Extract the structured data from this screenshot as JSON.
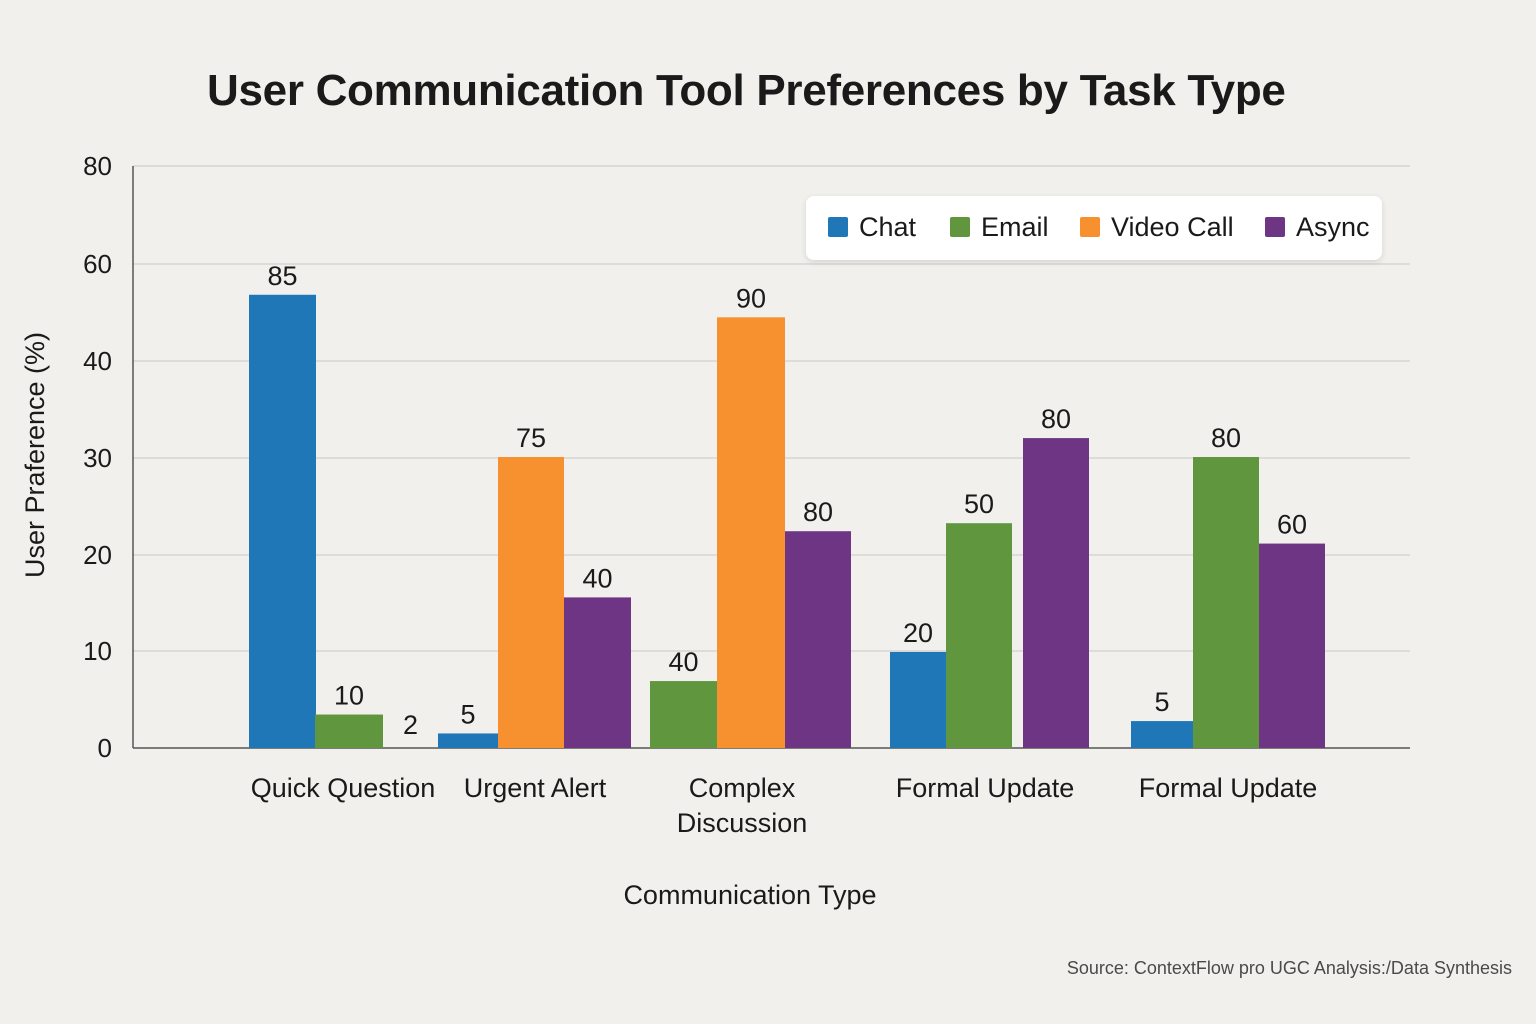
{
  "chart_data": {
    "type": "bar",
    "title": "User Communication Tool Preferences by Task Type",
    "xlabel": "Communication Type",
    "ylabel": "User Praference (%)",
    "ylim": [
      0,
      80
    ],
    "yticks": [
      "0",
      "10",
      "20",
      "30",
      "40",
      "60",
      "80"
    ],
    "grid": true,
    "legend_position": "top-right",
    "categories": [
      [
        "Quick Question"
      ],
      [
        "Urgent Alert"
      ],
      [
        "Complex",
        "Discussion"
      ],
      [
        "Formal Update"
      ],
      [
        "Formal Update"
      ]
    ],
    "series": [
      {
        "name": "Chat",
        "color": "#1f77b8"
      },
      {
        "name": "Email",
        "color": "#5f963e"
      },
      {
        "name": "Video Call",
        "color": "#f7902e"
      },
      {
        "name": "Async",
        "color": "#6f3585"
      }
    ],
    "bars": [
      {
        "category": 0,
        "series": 0,
        "label": "85",
        "level": 62.3
      },
      {
        "category": 0,
        "series": 1,
        "label": "10",
        "level": 4.6
      },
      {
        "category": 0,
        "series": 3,
        "label": "2",
        "level": 0
      },
      {
        "category": 1,
        "series": 0,
        "label": "5",
        "level": 2.0
      },
      {
        "category": 1,
        "series": 2,
        "label": "75",
        "level": 40.0
      },
      {
        "category": 1,
        "series": 3,
        "label": "40",
        "level": 20.7
      },
      {
        "category": 2,
        "series": 1,
        "label": "40",
        "level": 9.2
      },
      {
        "category": 2,
        "series": 2,
        "label": "90",
        "level": 59.2
      },
      {
        "category": 2,
        "series": 3,
        "label": "80",
        "level": 29.8
      },
      {
        "category": 3,
        "series": 0,
        "label": "20",
        "level": 13.2
      },
      {
        "category": 3,
        "series": 1,
        "label": "50",
        "level": 30.9
      },
      {
        "category": 3,
        "series": 3,
        "label": "80",
        "level": 42.6
      },
      {
        "category": 4,
        "series": 0,
        "label": "5",
        "level": 3.7
      },
      {
        "category": 4,
        "series": 1,
        "label": "80",
        "level": 40.0
      },
      {
        "category": 4,
        "series": 3,
        "label": "60",
        "level": 28.1
      }
    ],
    "source": "Source: ContextFlow pro UGC Analysis:/Data Synthesis"
  }
}
